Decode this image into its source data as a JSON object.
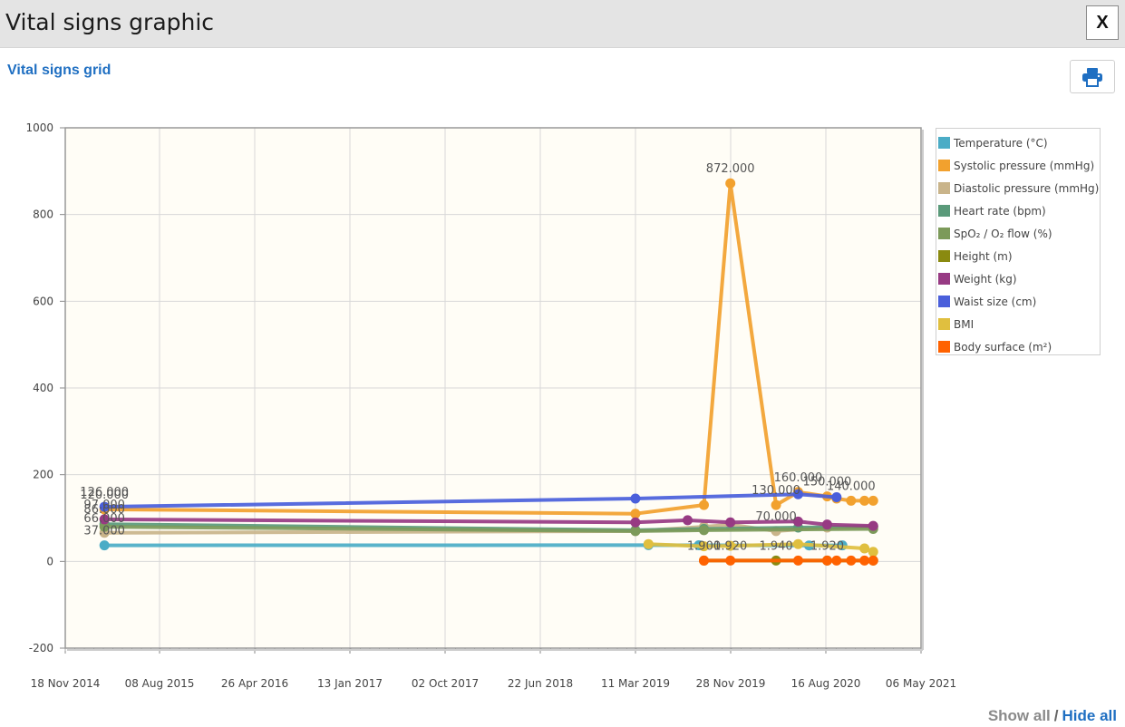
{
  "window": {
    "title": "Vital signs graphic",
    "close_label": "X"
  },
  "toolbar": {
    "grid_link": "Vital signs grid",
    "print_icon": "printer-icon"
  },
  "colors": {
    "plot_bg": "#fffdf6",
    "link": "#1f6fc2",
    "series": [
      "#4bacc6",
      "#f2a12e",
      "#c9b48a",
      "#5a9a7a",
      "#7c9a5a",
      "#8a8a10",
      "#973a83",
      "#4a5fdb",
      "#e0bf3f",
      "#ff6200"
    ]
  },
  "footer": {
    "show_all": "Show all",
    "separator": "/",
    "hide_all": "Hide all"
  },
  "chart_data": {
    "type": "line",
    "title": "",
    "xlabel": "",
    "ylabel": "",
    "ylim": [
      -200,
      1000
    ],
    "yticks": [
      -200,
      0,
      200,
      400,
      600,
      800,
      1000
    ],
    "xlim": [
      "2014-11-18",
      "2021-05-06"
    ],
    "xtick_labels": [
      "18 Nov 2014",
      "08 Aug 2015",
      "26 Apr 2016",
      "13 Jan 2017",
      "02 Oct 2017",
      "22 Jun 2018",
      "11 Mar 2019",
      "28 Nov 2019",
      "16 Aug 2020",
      "06 May 2021"
    ],
    "grid": true,
    "legend_position": "right",
    "series": [
      {
        "name": "Temperature (°C)",
        "color": "#4bacc6",
        "points": [
          [
            "2015-03-06",
            37.0
          ],
          [
            "2019-04-15",
            37.5
          ],
          [
            "2019-09-01",
            37.2
          ],
          [
            "2020-07-01",
            36.8
          ],
          [
            "2020-10-01",
            37.0
          ]
        ]
      },
      {
        "name": "Systolic pressure (mmHg)",
        "color": "#f2a12e",
        "points": [
          [
            "2015-03-06",
            120.0
          ],
          [
            "2019-03-10",
            110.0
          ],
          [
            "2019-09-15",
            130.0
          ],
          [
            "2019-11-27",
            872.0
          ],
          [
            "2020-04-01",
            130.0
          ],
          [
            "2020-06-01",
            160.0
          ],
          [
            "2020-08-20",
            150.0
          ],
          [
            "2020-09-15",
            145.0
          ],
          [
            "2020-10-25",
            140.0
          ],
          [
            "2020-12-01",
            140.0
          ],
          [
            "2020-12-25",
            140.0
          ]
        ]
      },
      {
        "name": "Diastolic pressure (mmHg)",
        "color": "#c9b48a",
        "points": [
          [
            "2015-03-06",
            66.0
          ],
          [
            "2019-03-10",
            70.0
          ],
          [
            "2019-09-15",
            80.0
          ],
          [
            "2019-11-27",
            85.0
          ],
          [
            "2020-04-01",
            70.0
          ],
          [
            "2020-08-20",
            78.0
          ],
          [
            "2020-12-25",
            80.0
          ]
        ]
      },
      {
        "name": "Heart rate (bpm)",
        "color": "#5a9a7a",
        "points": [
          [
            "2015-03-06",
            86.0
          ],
          [
            "2019-03-10",
            72.0
          ],
          [
            "2019-09-15",
            75.0
          ],
          [
            "2020-06-01",
            78.0
          ],
          [
            "2020-12-25",
            80.0
          ]
        ]
      },
      {
        "name": "SpO₂ / O₂ flow (%)",
        "color": "#7c9a5a",
        "points": [
          [
            "2015-03-06",
            80.0
          ],
          [
            "2019-03-10",
            70.0
          ],
          [
            "2019-09-15",
            72.0
          ],
          [
            "2020-12-25",
            75.0
          ]
        ]
      },
      {
        "name": "Height (m)",
        "color": "#8a8a10",
        "points": [
          [
            "2019-09-15",
            1.94
          ],
          [
            "2020-04-01",
            1.94
          ],
          [
            "2020-08-20",
            1.92
          ],
          [
            "2020-12-25",
            1.92
          ]
        ]
      },
      {
        "name": "Weight (kg)",
        "color": "#973a83",
        "points": [
          [
            "2015-03-06",
            97.0
          ],
          [
            "2019-03-10",
            90.0
          ],
          [
            "2019-08-01",
            95.0
          ],
          [
            "2019-11-27",
            90.0
          ],
          [
            "2020-06-01",
            92.0
          ],
          [
            "2020-08-20",
            85.0
          ],
          [
            "2020-12-25",
            82.0
          ]
        ]
      },
      {
        "name": "Waist size (cm)",
        "color": "#4a5fdb",
        "points": [
          [
            "2015-03-06",
            126.0
          ],
          [
            "2019-03-10",
            145.0
          ],
          [
            "2020-06-01",
            155.0
          ],
          [
            "2020-09-15",
            148.0
          ]
        ]
      },
      {
        "name": "BMI",
        "color": "#e0bf3f",
        "points": [
          [
            "2019-04-15",
            40.0
          ],
          [
            "2019-09-15",
            35.0
          ],
          [
            "2019-11-27",
            36.0
          ],
          [
            "2020-06-01",
            40.0
          ],
          [
            "2020-12-01",
            30.0
          ],
          [
            "2020-12-25",
            22.0
          ]
        ]
      },
      {
        "name": "Body surface (m²)",
        "color": "#ff6200",
        "points": [
          [
            "2019-09-15",
            1.9
          ],
          [
            "2019-11-27",
            1.92
          ],
          [
            "2020-06-01",
            1.94
          ],
          [
            "2020-08-20",
            1.94
          ],
          [
            "2020-09-15",
            1.93
          ],
          [
            "2020-10-25",
            1.92
          ],
          [
            "2020-12-01",
            1.92
          ],
          [
            "2020-12-25",
            1.92
          ]
        ]
      }
    ],
    "annotations": [
      {
        "text": "872.000",
        "series": 1,
        "point": 3
      },
      {
        "text": "120.000",
        "series": 1,
        "point": 0
      },
      {
        "text": "126.000",
        "series": 7,
        "point": 0
      },
      {
        "text": "97.000",
        "series": 6,
        "point": 0
      },
      {
        "text": "86.000",
        "series": 3,
        "point": 0
      },
      {
        "text": "66.000",
        "series": 2,
        "point": 0
      },
      {
        "text": "37.000",
        "series": 0,
        "point": 0
      },
      {
        "text": "130.000",
        "series": 1,
        "point": 4
      },
      {
        "text": "160.000",
        "series": 1,
        "point": 5
      },
      {
        "text": "150.000",
        "series": 1,
        "point": 6
      },
      {
        "text": "140.000",
        "series": 1,
        "point": 8
      },
      {
        "text": "70.000",
        "series": 2,
        "point": 4
      },
      {
        "text": "1.940",
        "series": 5,
        "point": 1
      },
      {
        "text": "1.920",
        "series": 5,
        "point": 2
      },
      {
        "text": "1.900",
        "series": 9,
        "point": 0
      },
      {
        "text": "1.920",
        "series": 9,
        "point": 1
      }
    ]
  }
}
